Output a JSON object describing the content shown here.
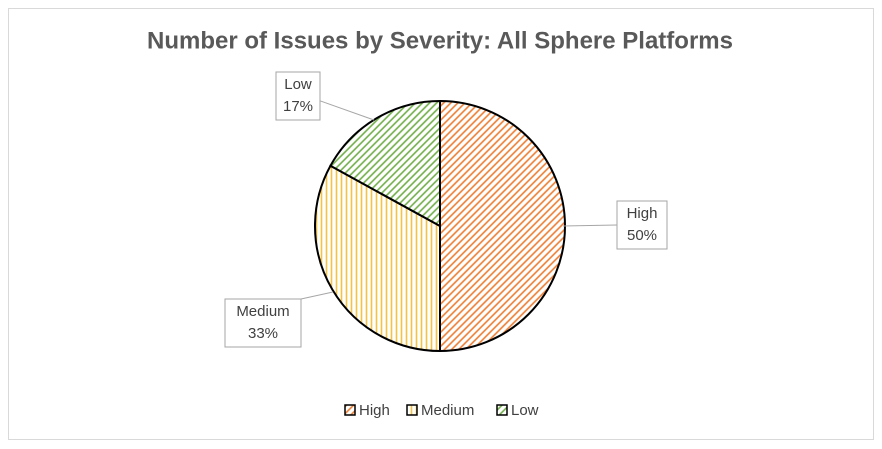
{
  "chart_data": {
    "type": "pie",
    "title": "Number of Issues by Severity: All Sphere Platforms",
    "categories": [
      "High",
      "Medium",
      "Low"
    ],
    "values": [
      50,
      33,
      17
    ],
    "value_labels": [
      "50%",
      "33%",
      "17%"
    ],
    "colors": [
      "#ed7d31",
      "#f5c242",
      "#70ad47"
    ],
    "patterns": [
      "diagonal",
      "vertical",
      "diagonal"
    ],
    "legend": "bottom"
  }
}
